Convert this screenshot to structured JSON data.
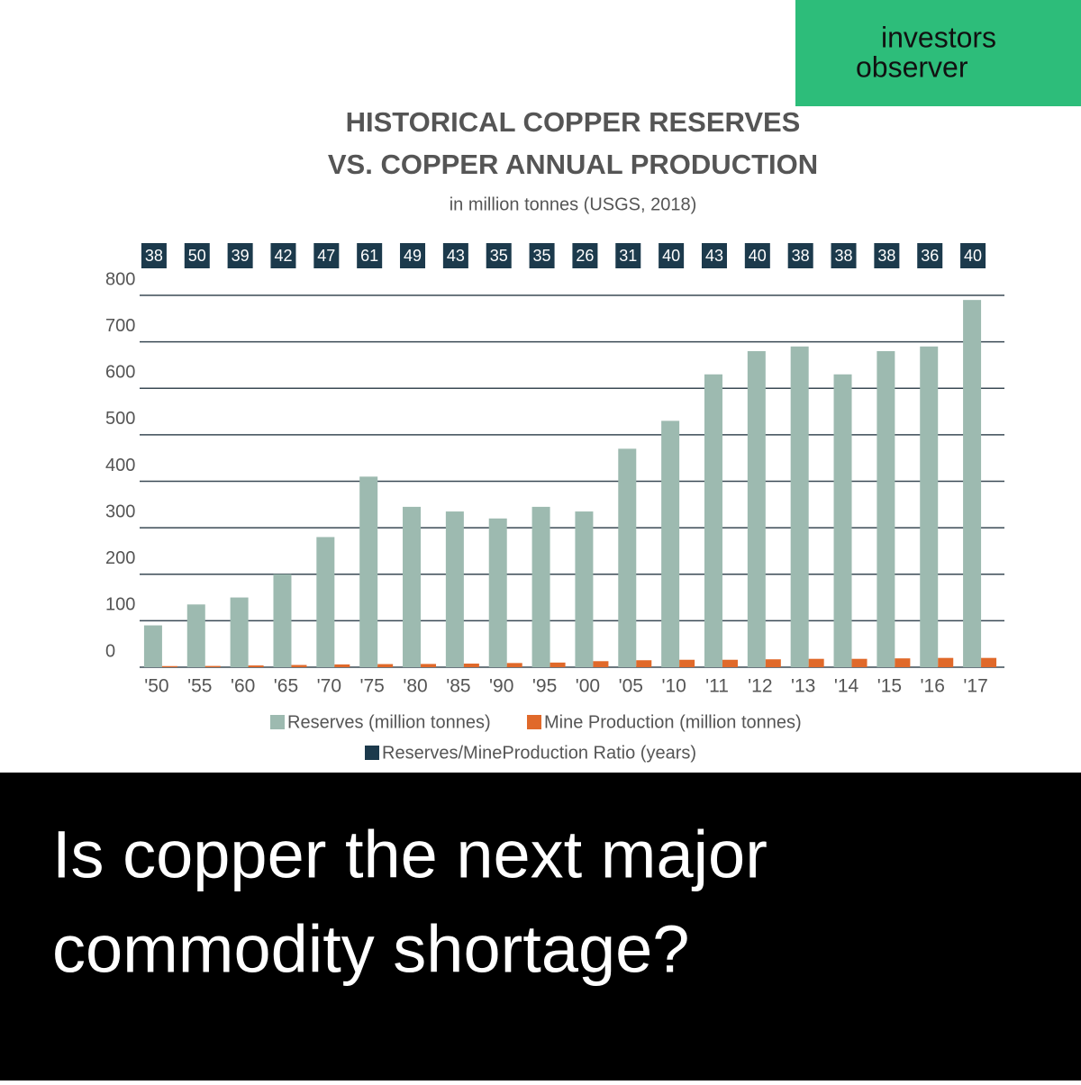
{
  "logo": {
    "line1": "investors",
    "line2": "observer"
  },
  "headline": {
    "line1": "Is copper the next major",
    "line2": "commodity shortage?"
  },
  "chart_data": {
    "type": "bar",
    "title": "HISTORICAL COPPER RESERVES",
    "title_line2": "VS. COPPER ANNUAL PRODUCTION",
    "subtitle": "in million tonnes (USGS, 2018)",
    "categories": [
      "'50",
      "'55",
      "'60",
      "'65",
      "'70",
      "'75",
      "'80",
      "'85",
      "'90",
      "'95",
      "'00",
      "'05",
      "'10",
      "'11",
      "'12",
      "'13",
      "'14",
      "'15",
      "'16",
      "'17"
    ],
    "series": [
      {
        "name": "Reserves (million tonnes)",
        "color": "#9dbab0",
        "values": [
          90,
          135,
          150,
          200,
          280,
          410,
          345,
          335,
          320,
          345,
          335,
          470,
          530,
          630,
          680,
          690,
          630,
          680,
          690,
          790
        ]
      },
      {
        "name": "Mine Production (million tonnes)",
        "color": "#e0692a",
        "values": [
          2.4,
          2.7,
          3.8,
          4.8,
          6,
          6.7,
          7,
          7.8,
          9,
          10,
          13,
          15,
          16,
          16,
          17,
          18,
          18,
          19,
          20,
          20
        ]
      },
      {
        "name": "Reserves/MineProduction Ratio (years)",
        "color": "#1c3a4c",
        "values": [
          38,
          50,
          39,
          42,
          47,
          61,
          49,
          43,
          35,
          35,
          26,
          31,
          40,
          43,
          40,
          38,
          38,
          38,
          36,
          40
        ]
      }
    ],
    "ylim": [
      0,
      800
    ],
    "yticks": [
      0,
      100,
      200,
      300,
      400,
      500,
      600,
      700,
      800
    ],
    "grid": true
  }
}
